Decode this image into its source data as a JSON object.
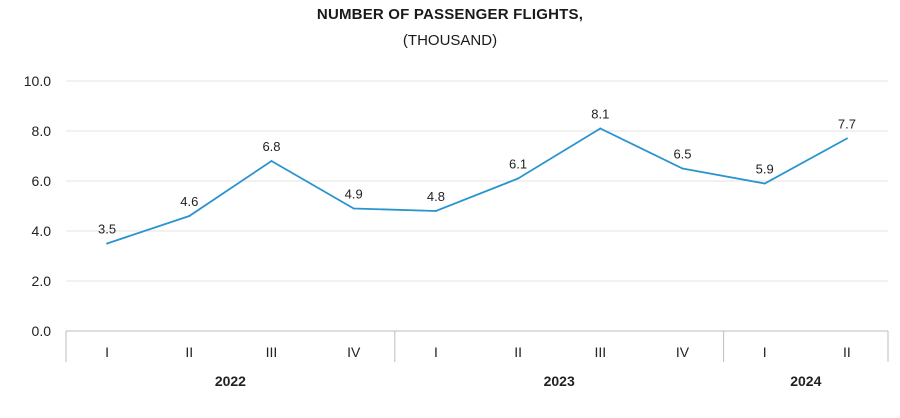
{
  "chart_data": {
    "type": "line",
    "title": "NUMBER OF PASSENGER FLIGHTS,",
    "subtitle": "(THOUSAND)",
    "categories": [
      "I",
      "II",
      "III",
      "IV",
      "I",
      "II",
      "III",
      "IV",
      "I",
      "II"
    ],
    "groups": [
      {
        "label": "2022",
        "count": 4
      },
      {
        "label": "2023",
        "count": 4
      },
      {
        "label": "2024",
        "count": 2
      }
    ],
    "series": [
      {
        "name": "Passenger flights",
        "values": [
          3.5,
          4.6,
          6.8,
          4.9,
          4.8,
          6.1,
          8.1,
          6.5,
          5.9,
          7.7
        ]
      }
    ],
    "data_labels": [
      "3.5",
      "4.6",
      "6.8",
      "4.9",
      "4.8",
      "6.1",
      "8.1",
      "6.5",
      "5.9",
      "7.7"
    ],
    "yticks": [
      "0.0",
      "2.0",
      "4.0",
      "6.0",
      "8.0",
      "10.0"
    ],
    "ylim": [
      0,
      10
    ],
    "xlabel": "",
    "ylabel": "",
    "line_color": "#2a94cf",
    "grid_color": "#e3e3e3",
    "axis_color": "#bdbdbd"
  }
}
